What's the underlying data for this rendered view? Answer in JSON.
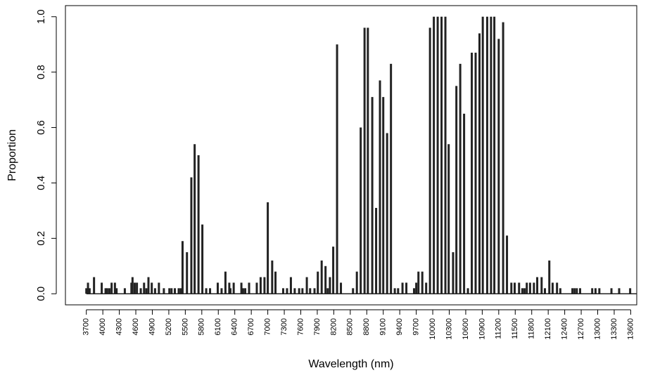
{
  "chart_data": {
    "type": "spike",
    "x_label": "Wavelength (nm)",
    "y_label": "Proportion",
    "color": "#222222",
    "x": [
      3700,
      3730,
      3760,
      3840,
      3980,
      4050,
      4080,
      4120,
      4160,
      4220,
      4250,
      4400,
      4520,
      4540,
      4580,
      4620,
      4690,
      4750,
      4790,
      4830,
      4890,
      4950,
      5020,
      5110,
      5210,
      5250,
      5310,
      5380,
      5420,
      5450,
      5530,
      5610,
      5670,
      5740,
      5810,
      5880,
      5950,
      6090,
      6160,
      6230,
      6300,
      6320,
      6380,
      6520,
      6550,
      6590,
      6660,
      6800,
      6870,
      6940,
      7000,
      7080,
      7140,
      7280,
      7350,
      7420,
      7490,
      7570,
      7630,
      7710,
      7770,
      7850,
      7910,
      7980,
      8050,
      8090,
      8130,
      8190,
      8260,
      8330,
      8550,
      8620,
      8690,
      8760,
      8820,
      8900,
      8970,
      9040,
      9100,
      9170,
      9240,
      9310,
      9370,
      9450,
      9520,
      9660,
      9700,
      9740,
      9810,
      9880,
      9950,
      10020,
      10090,
      10160,
      10230,
      10290,
      10370,
      10430,
      10500,
      10570,
      10640,
      10710,
      10780,
      10850,
      10910,
      10990,
      11060,
      11120,
      11200,
      11280,
      11350,
      11430,
      11490,
      11570,
      11630,
      11670,
      11710,
      11770,
      11840,
      11900,
      11980,
      12040,
      12120,
      12180,
      12260,
      12320,
      12540,
      12580,
      12620,
      12680,
      12900,
      12960,
      13030,
      13250,
      13390,
      13590
    ],
    "values": [
      0.02,
      0.04,
      0.02,
      0.06,
      0.04,
      0.02,
      0.02,
      0.02,
      0.04,
      0.04,
      0.02,
      0.02,
      0.04,
      0.06,
      0.04,
      0.04,
      0.02,
      0.04,
      0.02,
      0.06,
      0.04,
      0.02,
      0.04,
      0.02,
      0.02,
      0.02,
      0.02,
      0.02,
      0.02,
      0.19,
      0.15,
      0.42,
      0.54,
      0.5,
      0.25,
      0.02,
      0.02,
      0.04,
      0.02,
      0.08,
      0.04,
      0.02,
      0.04,
      0.04,
      0.02,
      0.02,
      0.04,
      0.04,
      0.06,
      0.06,
      0.33,
      0.12,
      0.08,
      0.02,
      0.02,
      0.06,
      0.02,
      0.02,
      0.02,
      0.06,
      0.02,
      0.02,
      0.08,
      0.12,
      0.1,
      0.02,
      0.06,
      0.17,
      0.9,
      0.04,
      0.02,
      0.08,
      0.6,
      0.96,
      0.96,
      0.71,
      0.31,
      0.77,
      0.71,
      0.58,
      0.83,
      0.02,
      0.02,
      0.04,
      0.04,
      0.02,
      0.04,
      0.08,
      0.08,
      0.04,
      0.96,
      1.0,
      1.0,
      1.0,
      1.0,
      0.54,
      0.15,
      0.75,
      0.83,
      0.65,
      0.02,
      0.87,
      0.87,
      0.94,
      1.0,
      1.0,
      1.0,
      1.0,
      0.92,
      0.98,
      0.21,
      0.04,
      0.04,
      0.04,
      0.02,
      0.02,
      0.04,
      0.04,
      0.04,
      0.06,
      0.06,
      0.02,
      0.12,
      0.04,
      0.04,
      0.02,
      0.02,
      0.02,
      0.02,
      0.02,
      0.02,
      0.02,
      0.02,
      0.02,
      0.02,
      0.02
    ],
    "xlim": [
      3320,
      13710
    ],
    "ylim": [
      -0.04,
      1.04
    ],
    "xticks": [
      3700,
      4000,
      4300,
      4600,
      4900,
      5200,
      5500,
      5800,
      6100,
      6400,
      6700,
      7000,
      7300,
      7600,
      7900,
      8200,
      8500,
      8800,
      9100,
      9400,
      9700,
      10000,
      10300,
      10600,
      10900,
      11200,
      11500,
      11800,
      12100,
      12400,
      12700,
      13000,
      13300,
      13600
    ],
    "yticks": [
      {
        "value": 0,
        "label": "0.0"
      },
      {
        "value": 0.2,
        "label": "0.2"
      },
      {
        "value": 0.4,
        "label": "0.4"
      },
      {
        "value": 0.6,
        "label": "0.6"
      },
      {
        "value": 0.8,
        "label": "0.8"
      },
      {
        "value": 1,
        "label": "1.0"
      }
    ]
  }
}
